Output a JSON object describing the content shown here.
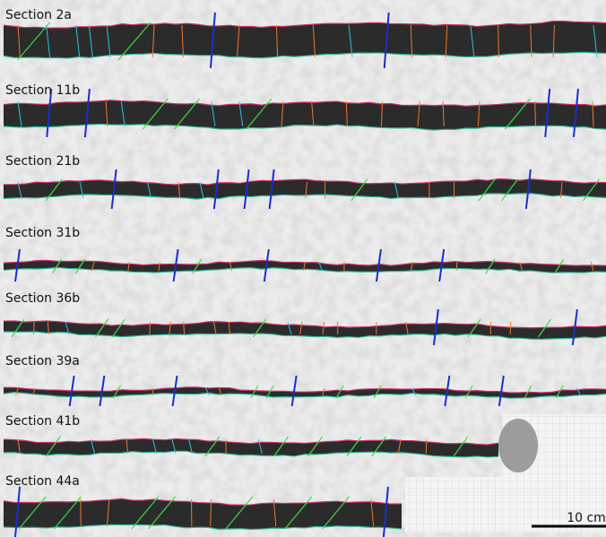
{
  "sections": [
    "Section 2a",
    "Section 11b",
    "Section 21b",
    "Section 31b",
    "Section 36b",
    "Section 39a",
    "Section 41b",
    "Section 44a"
  ],
  "scale_bar": {
    "label": "10 cm"
  }
}
